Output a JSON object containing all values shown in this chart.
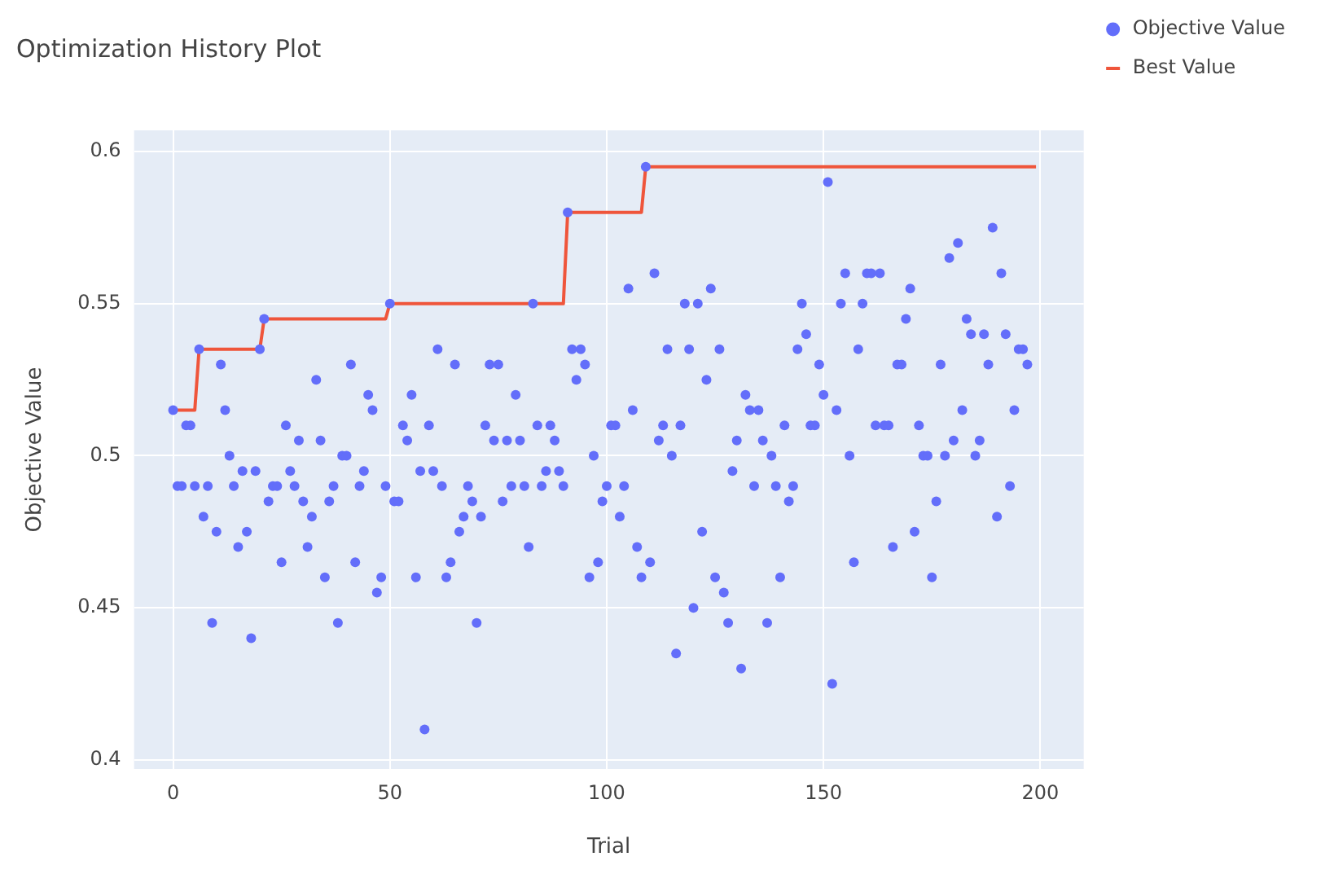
{
  "chart_data": {
    "type": "scatter",
    "title": "Optimization History Plot",
    "xlabel": "Trial",
    "ylabel": "Objective Value",
    "xlim": [
      -9,
      210
    ],
    "xticks": [
      0,
      50,
      100,
      150,
      200
    ],
    "ylim": [
      0.397,
      0.607
    ],
    "yticks": [
      0.4,
      0.45,
      0.5,
      0.55,
      0.6
    ],
    "grid": true,
    "legend": "top right",
    "series": [
      {
        "name": "Objective Value",
        "type": "scatter",
        "marker": "circle",
        "color": "#636efa",
        "x": [
          0,
          1,
          2,
          3,
          4,
          5,
          6,
          7,
          8,
          9,
          10,
          11,
          12,
          13,
          14,
          15,
          16,
          17,
          18,
          19,
          20,
          21,
          22,
          23,
          24,
          25,
          26,
          27,
          28,
          29,
          30,
          31,
          32,
          33,
          34,
          35,
          36,
          37,
          38,
          39,
          40,
          41,
          42,
          43,
          44,
          45,
          46,
          47,
          48,
          49,
          50,
          51,
          52,
          53,
          54,
          55,
          56,
          57,
          58,
          59,
          60,
          61,
          62,
          63,
          64,
          65,
          66,
          67,
          68,
          69,
          70,
          71,
          72,
          73,
          74,
          75,
          76,
          77,
          78,
          79,
          80,
          81,
          82,
          83,
          84,
          85,
          86,
          87,
          88,
          89,
          90,
          91,
          92,
          93,
          94,
          95,
          96,
          97,
          98,
          99,
          100,
          101,
          102,
          103,
          104,
          105,
          106,
          107,
          108,
          109,
          110,
          111,
          112,
          113,
          114,
          115,
          116,
          117,
          118,
          119,
          120,
          121,
          122,
          123,
          124,
          125,
          126,
          127,
          128,
          129,
          130,
          131,
          132,
          133,
          134,
          135,
          136,
          137,
          138,
          139,
          140,
          141,
          142,
          143,
          144,
          145,
          146,
          147,
          148,
          149,
          150,
          151,
          152,
          153,
          154,
          155,
          156,
          157,
          158,
          159,
          160,
          161,
          162,
          163,
          164,
          165,
          166,
          167,
          168,
          169,
          170,
          171,
          172,
          173,
          174,
          175,
          176,
          177,
          178,
          179,
          180,
          181,
          182,
          183,
          184,
          185,
          186,
          187,
          188,
          189,
          190,
          191,
          192,
          193,
          194,
          195,
          196,
          197
        ],
        "values": [
          0.515,
          0.49,
          0.49,
          0.51,
          0.51,
          0.49,
          0.535,
          0.48,
          0.49,
          0.445,
          0.475,
          0.53,
          0.515,
          0.5,
          0.49,
          0.47,
          0.495,
          0.475,
          0.44,
          0.495,
          0.535,
          0.545,
          0.485,
          0.49,
          0.49,
          0.465,
          0.51,
          0.495,
          0.49,
          0.505,
          0.485,
          0.47,
          0.48,
          0.525,
          0.505,
          0.46,
          0.485,
          0.49,
          0.445,
          0.5,
          0.5,
          0.53,
          0.465,
          0.49,
          0.495,
          0.52,
          0.515,
          0.455,
          0.46,
          0.49,
          0.55,
          0.485,
          0.485,
          0.51,
          0.505,
          0.52,
          0.46,
          0.495,
          0.41,
          0.51,
          0.495,
          0.535,
          0.49,
          0.46,
          0.465,
          0.53,
          0.475,
          0.48,
          0.49,
          0.485,
          0.445,
          0.48,
          0.51,
          0.53,
          0.505,
          0.53,
          0.485,
          0.505,
          0.49,
          0.52,
          0.505,
          0.49,
          0.47,
          0.55,
          0.51,
          0.49,
          0.495,
          0.51,
          0.505,
          0.495,
          0.49,
          0.58,
          0.535,
          0.525,
          0.535,
          0.53,
          0.46,
          0.5,
          0.465,
          0.485,
          0.49,
          0.51,
          0.51,
          0.48,
          0.49,
          0.555,
          0.515,
          0.47,
          0.46,
          0.595,
          0.465,
          0.56,
          0.505,
          0.51,
          0.535,
          0.5,
          0.435,
          0.51,
          0.55,
          0.535,
          0.45,
          0.55,
          0.475,
          0.525,
          0.555,
          0.46,
          0.535,
          0.455,
          0.445,
          0.495,
          0.505,
          0.43,
          0.52,
          0.515,
          0.49,
          0.515,
          0.505,
          0.445,
          0.5,
          0.49,
          0.46,
          0.51,
          0.485,
          0.49,
          0.535,
          0.55,
          0.54,
          0.51,
          0.51,
          0.53,
          0.52,
          0.59,
          0.425,
          0.515,
          0.55,
          0.56,
          0.5,
          0.465,
          0.535,
          0.55,
          0.56,
          0.56,
          0.51,
          0.56,
          0.51,
          0.51,
          0.47,
          0.53,
          0.53,
          0.545,
          0.555,
          0.475,
          0.51,
          0.5,
          0.5,
          0.46,
          0.485,
          0.53,
          0.5,
          0.565,
          0.505,
          0.57,
          0.515,
          0.545,
          0.54,
          0.5,
          0.505,
          0.54,
          0.53,
          0.575,
          0.48,
          0.56,
          0.54,
          0.49,
          0.515,
          0.535,
          0.535,
          0.53
        ]
      },
      {
        "name": "Best Value",
        "type": "line",
        "marker": "none",
        "color": "#ef553b",
        "x": [
          0,
          5,
          6,
          20,
          21,
          49,
          50,
          90,
          91,
          108,
          109,
          199
        ],
        "values": [
          0.515,
          0.515,
          0.535,
          0.535,
          0.545,
          0.545,
          0.55,
          0.55,
          0.58,
          0.58,
          0.595,
          0.595
        ]
      }
    ]
  }
}
